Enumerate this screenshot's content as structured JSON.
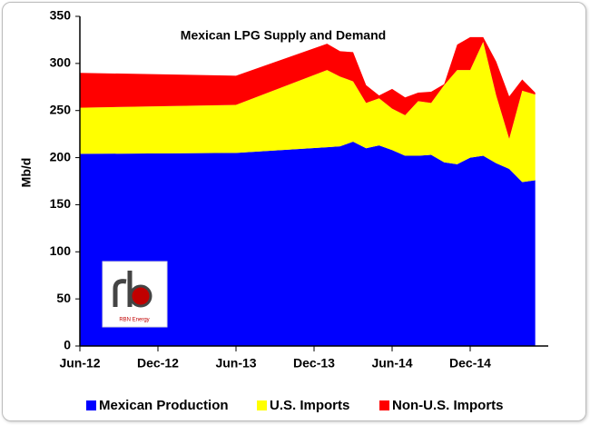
{
  "chart_data": {
    "type": "stacked_area",
    "title": "Mexican LPG Supply and Demand",
    "y_label": "Mb/d",
    "logo_text": "RBN Energy",
    "x": [
      "2012-06",
      "2013-06",
      "2014-01",
      "2014-02",
      "2014-03",
      "2014-04",
      "2014-05",
      "2014-06",
      "2014-07",
      "2014-08",
      "2014-09",
      "2014-10",
      "2014-11",
      "2014-12",
      "2015-01",
      "2015-02",
      "2015-03",
      "2015-04",
      "2015-05"
    ],
    "series": [
      {
        "name": "Mexican Production",
        "color": "#0000ff",
        "values": [
          204,
          205,
          211,
          212,
          217,
          210,
          213,
          208,
          202,
          202,
          203,
          195,
          193,
          200,
          202,
          194,
          188,
          174,
          176
        ]
      },
      {
        "name": "U.S. Imports",
        "color": "#ffff00",
        "values": [
          49,
          51,
          82,
          74,
          64,
          48,
          50,
          44,
          43,
          58,
          55,
          82,
          100,
          93,
          121,
          72,
          32,
          97,
          91
        ]
      },
      {
        "name": "Non-U.S. Imports",
        "color": "#ff0000",
        "values": [
          37,
          31,
          28,
          27,
          31,
          19,
          3,
          21,
          19,
          9,
          12,
          1,
          27,
          35,
          5,
          36,
          45,
          12,
          2
        ]
      }
    ],
    "xlim": [
      "2012-06",
      "2015-06"
    ],
    "xticks": [
      {
        "value": "2012-06",
        "label": "Jun-12"
      },
      {
        "value": "2012-12",
        "label": "Dec-12"
      },
      {
        "value": "2013-06",
        "label": "Jun-13"
      },
      {
        "value": "2013-12",
        "label": "Dec-13"
      },
      {
        "value": "2014-06",
        "label": "Jun-14"
      },
      {
        "value": "2014-12",
        "label": "Dec-14"
      }
    ],
    "ylim": [
      0,
      350
    ],
    "yticks": [
      0,
      50,
      100,
      150,
      200,
      250,
      300,
      350
    ],
    "grid": false,
    "legend": "bottom"
  }
}
